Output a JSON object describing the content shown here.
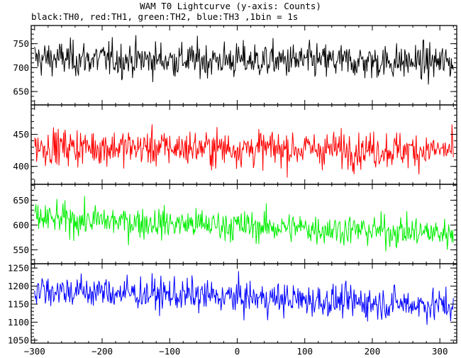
{
  "chart_data": {
    "type": "line",
    "title": "WAM T0 Lightcurve (y-axis: Counts)",
    "subtitle": "black:TH0, red:TH1, green:TH2, blue:TH3 ,1bin = 1s",
    "xlim": [
      -305,
      325
    ],
    "x_ticks": [
      -300,
      -200,
      -100,
      0,
      100,
      200,
      300
    ],
    "panels": [
      {
        "name": "TH0",
        "color": "#000000",
        "ylim": [
          622,
          788
        ],
        "y_ticks": [
          650,
          700,
          750
        ],
        "mean": 715,
        "noise": 26,
        "trend": -8
      },
      {
        "name": "TH1",
        "color": "#ff0000",
        "ylim": [
          372,
          496
        ],
        "y_ticks": [
          400,
          450
        ],
        "mean": 428,
        "noise": 20,
        "trend": -6
      },
      {
        "name": "TH2",
        "color": "#00ee00",
        "ylim": [
          522,
          682
        ],
        "y_ticks": [
          550,
          600,
          650
        ],
        "mean": 598,
        "noise": 22,
        "trend": -30
      },
      {
        "name": "TH3",
        "color": "#0000ff",
        "ylim": [
          1042,
          1262
        ],
        "y_ticks": [
          1050,
          1100,
          1150,
          1200,
          1250
        ],
        "mean": 1168,
        "noise": 32,
        "trend": -45
      }
    ]
  }
}
